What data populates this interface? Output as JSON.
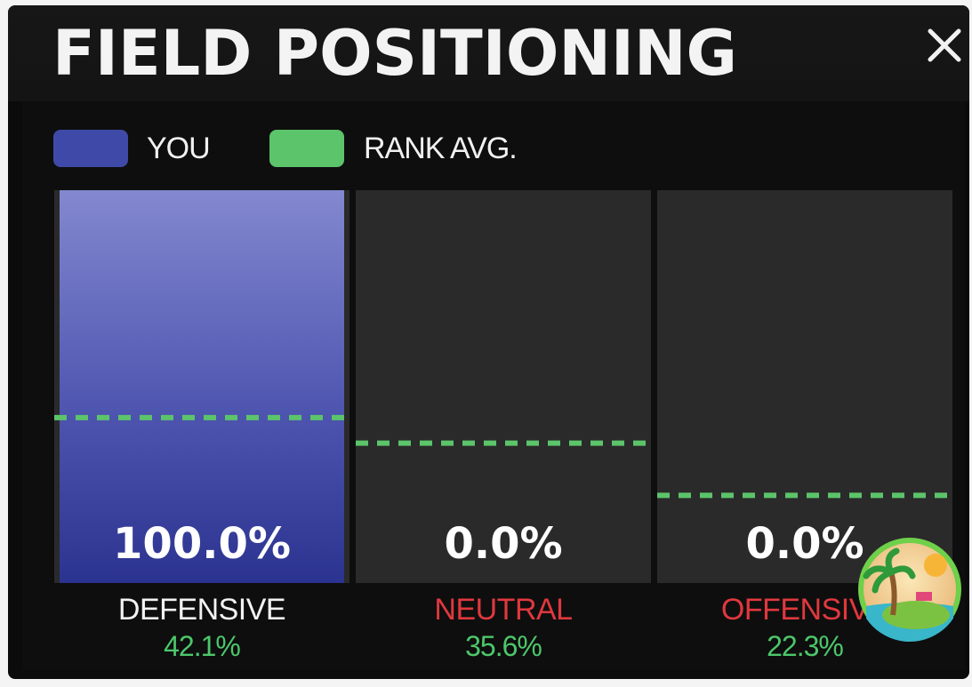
{
  "header": {
    "title": "FIELD POSITIONING",
    "close_icon": "close-icon"
  },
  "legend": [
    {
      "label": "YOU",
      "color": "#3f4aa8"
    },
    {
      "label": "RANK AVG.",
      "color": "#5cc46a"
    }
  ],
  "chart_data": {
    "type": "bar",
    "categories": [
      "DEFENSIVE",
      "NEUTRAL",
      "OFFENSIVE"
    ],
    "category_label_colors": [
      "#f2f2f2",
      "#e0383e",
      "#e0383e"
    ],
    "series": [
      {
        "name": "YOU",
        "values": [
          100.0,
          0.0,
          0.0
        ],
        "value_labels": [
          "100.0%",
          "0.0%",
          "0.0%"
        ],
        "color": "#3f4aa8"
      },
      {
        "name": "RANK AVG.",
        "values": [
          42.1,
          35.6,
          22.3
        ],
        "value_labels": [
          "42.1%",
          "35.6%",
          "22.3%"
        ],
        "color": "#5cc46a"
      }
    ],
    "ylim": [
      0,
      100
    ],
    "xlabel": "",
    "ylabel": ""
  },
  "avatar": {
    "icon": "beach-island-icon"
  }
}
